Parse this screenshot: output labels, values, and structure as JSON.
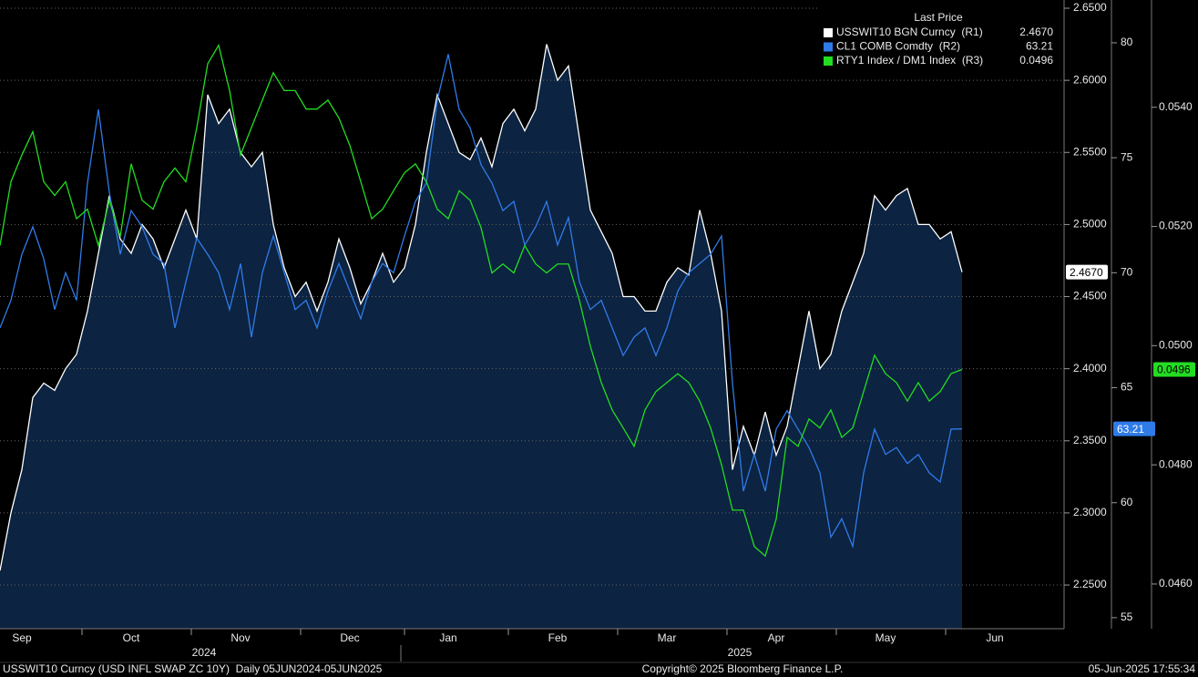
{
  "chart_data": {
    "type": "line",
    "categories": [
      null,
      null,
      "Sep",
      null,
      null,
      null,
      null,
      null,
      null,
      null,
      null,
      null,
      "Oct",
      null,
      null,
      null,
      null,
      null,
      null,
      null,
      null,
      null,
      "Nov",
      null,
      null,
      null,
      null,
      null,
      null,
      null,
      null,
      null,
      "Dec",
      null,
      null,
      null,
      null,
      null,
      null,
      null,
      null,
      "Jan",
      null,
      null,
      null,
      null,
      null,
      null,
      null,
      null,
      null,
      "Feb",
      null,
      null,
      null,
      null,
      null,
      null,
      null,
      null,
      null,
      "Mar",
      null,
      null,
      null,
      null,
      null,
      null,
      null,
      null,
      null,
      "Apr",
      null,
      null,
      null,
      null,
      null,
      null,
      null,
      null,
      null,
      "May",
      null,
      null,
      null,
      null,
      null,
      null,
      null,
      null,
      null,
      "Jun",
      null,
      null,
      null,
      null,
      null,
      null
    ],
    "years": [
      "2024",
      "2025"
    ],
    "legend_title": "Last Price",
    "series": [
      {
        "name": "USSWIT10 BGN Curncy  (R1)",
        "color": "#ffffff",
        "axis": "y",
        "area": true,
        "area_color": "#0c2341",
        "last_value_label": "2.4670",
        "values": [
          2.26,
          2.3,
          2.33,
          2.38,
          2.39,
          2.385,
          2.4,
          2.41,
          2.44,
          2.48,
          2.52,
          2.49,
          2.48,
          2.5,
          2.49,
          2.47,
          2.49,
          2.51,
          2.49,
          2.59,
          2.57,
          2.58,
          2.55,
          2.54,
          2.55,
          2.5,
          2.47,
          2.45,
          2.46,
          2.44,
          2.46,
          2.49,
          2.47,
          2.445,
          2.46,
          2.48,
          2.46,
          2.47,
          2.5,
          2.55,
          2.59,
          2.57,
          2.55,
          2.545,
          2.56,
          2.54,
          2.57,
          2.58,
          2.565,
          2.58,
          2.625,
          2.6,
          2.61,
          2.56,
          2.51,
          2.495,
          2.48,
          2.45,
          2.45,
          2.44,
          2.44,
          2.46,
          2.47,
          2.465,
          2.51,
          2.48,
          2.44,
          2.33,
          2.36,
          2.34,
          2.37,
          2.34,
          2.36,
          2.4,
          2.44,
          2.4,
          2.41,
          2.44,
          2.46,
          2.48,
          2.52,
          2.51,
          2.52,
          2.525,
          2.5,
          2.5,
          2.49,
          2.495,
          2.467,
          null,
          null,
          null,
          null,
          null,
          null,
          null,
          null,
          null
        ]
      },
      {
        "name": "CL1 COMB Comdty  (R2)",
        "color": "#2f7be8",
        "axis": "y2",
        "area": false,
        "last_value_label": "63.21",
        "values": [
          67.6,
          68.8,
          70.8,
          72,
          70.6,
          68.4,
          70,
          68.8,
          73.9,
          77.1,
          73.5,
          70.8,
          72.7,
          72,
          70.8,
          70.4,
          67.6,
          69.6,
          71.5,
          70.8,
          70,
          68.4,
          70.4,
          67.2,
          70,
          71.6,
          70,
          68.4,
          68.8,
          67.6,
          69.2,
          70.4,
          69.2,
          68,
          69.6,
          70.4,
          70,
          71.6,
          73.1,
          73.9,
          77.5,
          79.5,
          77.1,
          76.3,
          74.7,
          73.9,
          72.7,
          73.1,
          71.2,
          72,
          73.1,
          71.2,
          72.4,
          69.6,
          68.4,
          68.8,
          67.6,
          66.4,
          67.2,
          67.6,
          66.4,
          67.6,
          69.2,
          70,
          70.4,
          70.8,
          71.6,
          65.2,
          60.5,
          62.1,
          60.5,
          63.2,
          64,
          63.2,
          62.4,
          61.3,
          58.5,
          59.3,
          58.1,
          61.3,
          63.2,
          62.1,
          62.4,
          61.7,
          62.1,
          61.3,
          60.9,
          63.2,
          63.21,
          null,
          null,
          null,
          null,
          null,
          null,
          null,
          null,
          null
        ]
      },
      {
        "name": "RTY1 Index / DM1 Index  (R3)",
        "color": "#22dd22",
        "axis": "y3",
        "area": false,
        "last_value_label": "0.0496",
        "values": [
          0.05168,
          0.05275,
          0.0532,
          0.05359,
          0.05275,
          0.05252,
          0.05275,
          0.05213,
          0.05229,
          0.05168,
          0.05244,
          0.05183,
          0.05305,
          0.05244,
          0.05229,
          0.05275,
          0.05298,
          0.05275,
          0.05366,
          0.05473,
          0.05504,
          0.05428,
          0.0532,
          0.05366,
          0.05412,
          0.05458,
          0.05428,
          0.05428,
          0.05397,
          0.05397,
          0.05412,
          0.05382,
          0.05336,
          0.05275,
          0.05213,
          0.05229,
          0.0526,
          0.0529,
          0.05305,
          0.05275,
          0.05229,
          0.05213,
          0.0526,
          0.05244,
          0.05198,
          0.05122,
          0.05137,
          0.05122,
          0.05168,
          0.05137,
          0.05122,
          0.05137,
          0.05137,
          0.05076,
          0.04999,
          0.04938,
          0.04892,
          0.04862,
          0.04831,
          0.04892,
          0.04923,
          0.04938,
          0.04953,
          0.04938,
          0.04907,
          0.04862,
          0.048,
          0.04724,
          0.04724,
          0.04663,
          0.04647,
          0.04709,
          0.04846,
          0.04831,
          0.04877,
          0.04862,
          0.04892,
          0.04846,
          0.04862,
          0.04923,
          0.04984,
          0.04953,
          0.04938,
          0.04907,
          0.04938,
          0.04907,
          0.04923,
          0.04953,
          0.0496,
          null,
          null,
          null,
          null,
          null,
          null,
          null,
          null,
          null
        ]
      }
    ],
    "ylim": [
      2.2197,
      2.6557
    ],
    "yticks": [
      {
        "value": 2.25,
        "label": "2.2500"
      },
      {
        "value": 2.3,
        "label": "2.3000"
      },
      {
        "value": 2.35,
        "label": "2.3500"
      },
      {
        "value": 2.4,
        "label": "2.4000"
      },
      {
        "value": 2.45,
        "label": "2.4500"
      },
      {
        "value": 2.5,
        "label": "2.5000"
      },
      {
        "value": 2.55,
        "label": "2.5500"
      },
      {
        "value": 2.6,
        "label": "2.6000"
      },
      {
        "value": 2.65,
        "label": "2.6500"
      }
    ],
    "y2lim": [
      54.52,
      81.86
    ],
    "y2ticks": [
      55,
      60,
      65,
      70,
      75,
      80
    ],
    "y3lim": [
      0.04525,
      0.0558
    ],
    "y3ticks": [
      {
        "value": 0.046,
        "label": "0.0460"
      },
      {
        "value": 0.048,
        "label": "0.0480"
      },
      {
        "value": 0.05,
        "label": "0.0500"
      },
      {
        "value": 0.052,
        "label": "0.0520"
      },
      {
        "value": 0.054,
        "label": "0.0540"
      }
    ],
    "grid": true,
    "legend_position": "top-right",
    "footer_left": "USSWIT10 Curncy (USD INFL SWAP ZC 10Y)  Daily 05JUN2024-05JUN2025",
    "footer_center": "Copyright© 2025 Bloomberg Finance L.P.",
    "footer_right": "05-Jun-2025 17:55:34"
  }
}
